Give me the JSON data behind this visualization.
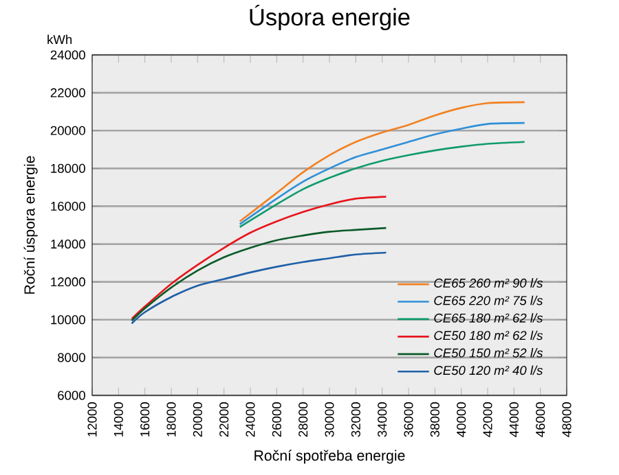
{
  "chart_data": {
    "type": "line",
    "title": "Úspora energie",
    "xlabel": "Roční spotřeba energie",
    "ylabel": "Roční úspora energie",
    "annotations": [
      "kWh"
    ],
    "xlim": [
      12000,
      48000
    ],
    "xticks": [
      12000,
      14000,
      16000,
      18000,
      20000,
      22000,
      24000,
      26000,
      28000,
      30000,
      32000,
      34000,
      36000,
      38000,
      40000,
      42000,
      44000,
      46000,
      48000
    ],
    "ylim": [
      6000,
      24000
    ],
    "yticks": [
      6000,
      8000,
      10000,
      12000,
      14000,
      16000,
      18000,
      20000,
      22000,
      24000
    ],
    "grid": "y",
    "legend": "bottom right",
    "marker": "none",
    "line_style": "solid",
    "series": [
      {
        "name": "CE65 260 m² 90 l/s",
        "color": "#f28022",
        "x": [
          23200,
          26000,
          28000,
          30000,
          32000,
          34000,
          36000,
          38000,
          40000,
          42000,
          44800
        ],
        "values": [
          15200,
          16700,
          17800,
          18700,
          19400,
          19900,
          20300,
          20800,
          21200,
          21450,
          21500
        ]
      },
      {
        "name": "CE65 220 m² 75 l/s",
        "color": "#2e8fd8",
        "x": [
          23200,
          26000,
          28000,
          30000,
          32000,
          34000,
          36000,
          38000,
          40000,
          42000,
          44800
        ],
        "values": [
          15050,
          16400,
          17300,
          18000,
          18600,
          19000,
          19400,
          19800,
          20100,
          20350,
          20400
        ]
      },
      {
        "name": "CE65 180 m² 62 l/s",
        "color": "#0f9a6e",
        "x": [
          23200,
          26000,
          28000,
          30000,
          32000,
          34000,
          36000,
          38000,
          40000,
          42000,
          44800
        ],
        "values": [
          14900,
          16100,
          16900,
          17500,
          18000,
          18400,
          18700,
          18950,
          19150,
          19300,
          19400
        ]
      },
      {
        "name": "CE50 180 m² 62 l/s",
        "color": "#e8141c",
        "x": [
          15000,
          16000,
          18000,
          20000,
          22000,
          24000,
          26000,
          28000,
          30000,
          32000,
          34300
        ],
        "values": [
          10050,
          10700,
          11900,
          12900,
          13800,
          14600,
          15200,
          15700,
          16100,
          16400,
          16500
        ]
      },
      {
        "name": "CE50 150 m² 52 l/s",
        "color": "#0a5a28",
        "x": [
          15000,
          16000,
          18000,
          20000,
          22000,
          24000,
          26000,
          28000,
          30000,
          32000,
          34300
        ],
        "values": [
          9950,
          10600,
          11700,
          12600,
          13300,
          13800,
          14200,
          14450,
          14650,
          14750,
          14850
        ]
      },
      {
        "name": "CE50 120 m² 40 l/s",
        "color": "#1f5fa8",
        "x": [
          15000,
          16000,
          18000,
          20000,
          22000,
          24000,
          26000,
          28000,
          30000,
          32000,
          34300
        ],
        "values": [
          9800,
          10400,
          11200,
          11800,
          12150,
          12500,
          12800,
          13050,
          13250,
          13450,
          13550
        ]
      }
    ]
  }
}
